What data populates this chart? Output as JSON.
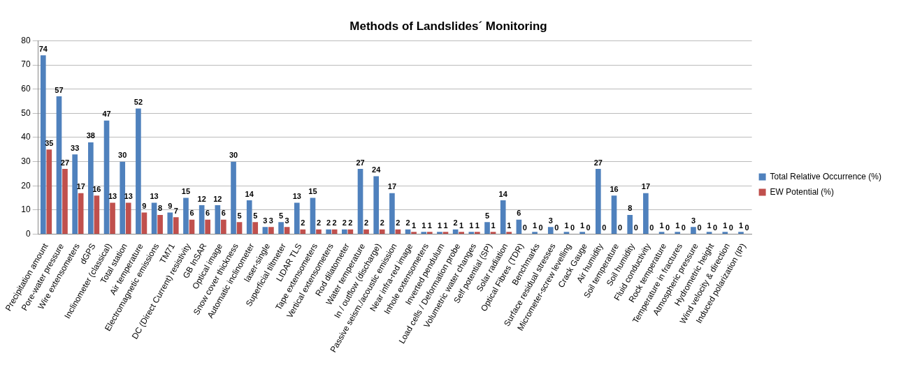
{
  "chart_data": {
    "type": "bar",
    "title": "Methods of Landslides´ Monitoring",
    "categories": [
      "Precipitation amount",
      "Pore-water pressure",
      "Wire extensometers",
      "dGPS",
      "Inclinometer (classical)",
      "Total station",
      "Air temperature",
      "Electromagnetic emissions",
      "TM71",
      "DC (Direct Current) resistivity",
      "GB InSAR",
      "Optical image",
      "Snow cover thickness",
      "Automatic inclinometer",
      "laser-single",
      "Superficial tiltmeter",
      "LIDAR TLS",
      "Tape extensometers",
      "Vertical extensometers",
      "Rod dilatometer",
      "Water temperature",
      "In / outflow (discharge)",
      "Passive seism./acoustic emission",
      "Near infra-red image",
      "Inhole extensometers",
      "Inverted pendulum",
      "Load cells / Deformation probe",
      "Volumetric water changes",
      "Self potential (SP)",
      "Solar radiation",
      "Optical Fibres (TDR)",
      "Benchmarks",
      "Surface residual stresses",
      "Micrometer-screw levelling",
      "Crack Gauge",
      "Air humidity",
      "Soil temperature",
      "Soil humidity",
      "Fluid conductivity",
      "Rock temperature",
      "Temperature in fractures",
      "Atmospheric pressure",
      "Hydrometric height",
      "Wind velocity & direction",
      "Induced polarization (IP)"
    ],
    "series": [
      {
        "name": "Total Relative Occurrence (%)",
        "color": "#4f81bd",
        "values": [
          74,
          57,
          33,
          38,
          47,
          30,
          52,
          13,
          9,
          15,
          12,
          12,
          30,
          14,
          3,
          5,
          13,
          15,
          2,
          2,
          27,
          24,
          17,
          2,
          1,
          1,
          2,
          1,
          5,
          14,
          6,
          1,
          3,
          1,
          1,
          27,
          16,
          8,
          17,
          1,
          1,
          3,
          1,
          1,
          1
        ]
      },
      {
        "name": "EW Potential (%)",
        "color": "#c0504d",
        "values": [
          35,
          27,
          17,
          16,
          13,
          13,
          9,
          8,
          7,
          6,
          6,
          6,
          5,
          5,
          3,
          3,
          2,
          2,
          2,
          2,
          2,
          2,
          2,
          1,
          1,
          1,
          1,
          1,
          1,
          1,
          0,
          0,
          0,
          0,
          0,
          0,
          0,
          0,
          0,
          0,
          0,
          0,
          0,
          0,
          0
        ]
      }
    ],
    "ylim": [
      0,
      80
    ],
    "yticks": [
      0,
      10,
      20,
      30,
      40,
      50,
      60,
      70,
      80
    ],
    "grid": "y",
    "legend": "right",
    "data_labels": true
  }
}
